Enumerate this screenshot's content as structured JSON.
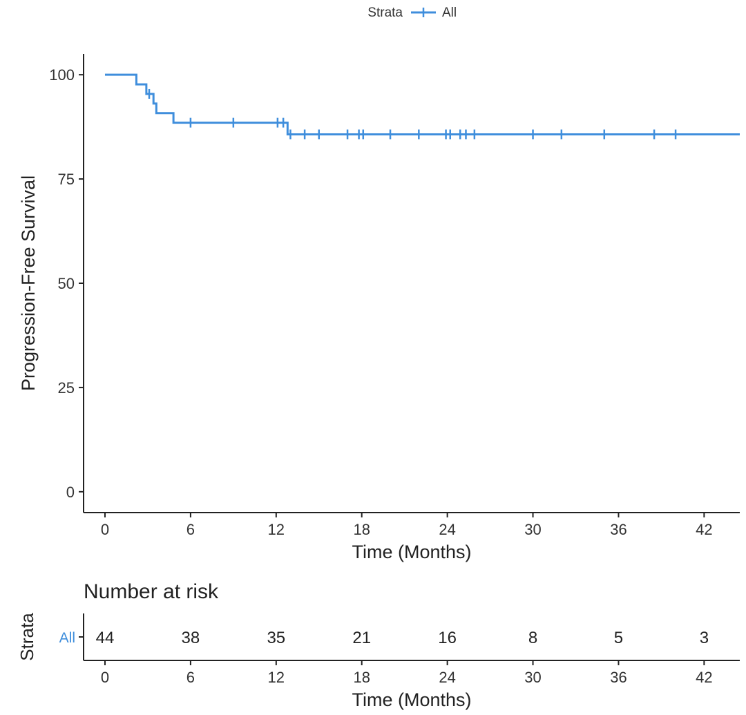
{
  "legend": {
    "title": "Strata",
    "label": "All"
  },
  "colors": {
    "series": "#3f8edc",
    "axis": "#222222",
    "text": "#222222",
    "tick_text": "#333333",
    "background": "#ffffff"
  },
  "chart_data": [
    {
      "type": "line",
      "subtype": "kaplan-meier-step",
      "title": "",
      "xlabel": "Time (Months)",
      "ylabel": "Progression-Free Survival",
      "xlim": [
        -1.5,
        44.5
      ],
      "ylim": [
        -5,
        105
      ],
      "xticks": [
        0,
        6,
        12,
        18,
        24,
        30,
        36,
        42
      ],
      "yticks": [
        0,
        25,
        50,
        75,
        100
      ],
      "grid": false,
      "legend_position": "top-center",
      "series": [
        {
          "name": "All",
          "steps": [
            {
              "x": 0,
              "y": 100
            },
            {
              "x": 2.2,
              "y": 97.7
            },
            {
              "x": 2.9,
              "y": 95.4
            },
            {
              "x": 3.4,
              "y": 93.1
            },
            {
              "x": 3.6,
              "y": 90.8
            },
            {
              "x": 4.8,
              "y": 88.5
            },
            {
              "x": 12.8,
              "y": 85.7
            }
          ],
          "end_x": 44.5,
          "censors": [
            {
              "x": 3.1,
              "y": 95.4
            },
            {
              "x": 6.0,
              "y": 88.5
            },
            {
              "x": 9.0,
              "y": 88.5
            },
            {
              "x": 12.1,
              "y": 88.5
            },
            {
              "x": 12.5,
              "y": 88.5
            },
            {
              "x": 13.0,
              "y": 85.7
            },
            {
              "x": 14.0,
              "y": 85.7
            },
            {
              "x": 15.0,
              "y": 85.7
            },
            {
              "x": 17.0,
              "y": 85.7
            },
            {
              "x": 17.8,
              "y": 85.7
            },
            {
              "x": 18.1,
              "y": 85.7
            },
            {
              "x": 20.0,
              "y": 85.7
            },
            {
              "x": 22.0,
              "y": 85.7
            },
            {
              "x": 23.9,
              "y": 85.7
            },
            {
              "x": 24.2,
              "y": 85.7
            },
            {
              "x": 24.9,
              "y": 85.7
            },
            {
              "x": 25.3,
              "y": 85.7
            },
            {
              "x": 25.9,
              "y": 85.7
            },
            {
              "x": 30.0,
              "y": 85.7
            },
            {
              "x": 32.0,
              "y": 85.7
            },
            {
              "x": 35.0,
              "y": 85.7
            },
            {
              "x": 38.5,
              "y": 85.7
            },
            {
              "x": 40.0,
              "y": 85.7
            }
          ]
        }
      ]
    },
    {
      "type": "table",
      "title": "Number at risk",
      "ylabel": "Strata",
      "xlabel": "Time (Months)",
      "xlim": [
        -1.5,
        44.5
      ],
      "xticks": [
        0,
        6,
        12,
        18,
        24,
        30,
        36,
        42
      ],
      "rows": [
        {
          "name": "All",
          "values": [
            44,
            38,
            35,
            21,
            16,
            8,
            5,
            3
          ]
        }
      ]
    }
  ]
}
